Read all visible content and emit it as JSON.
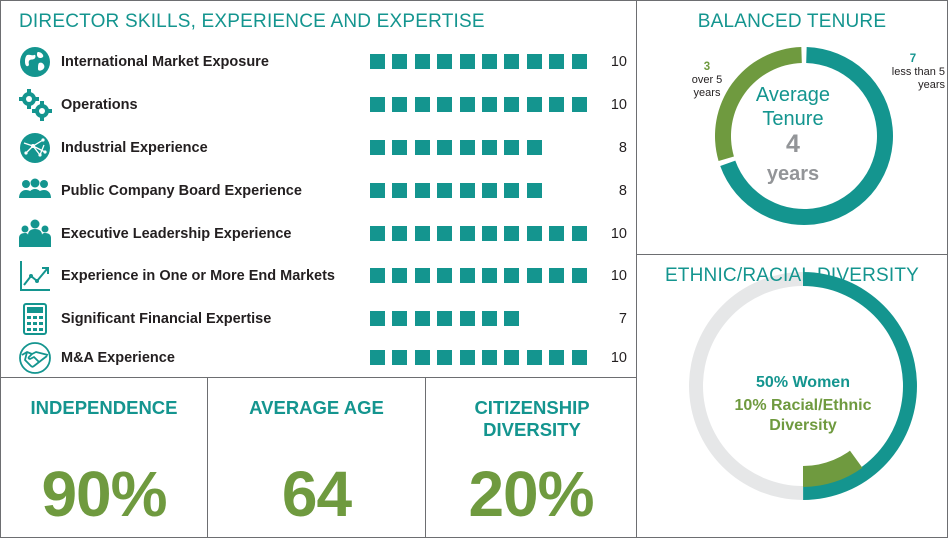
{
  "skills_panel": {
    "title": "DIRECTOR SKILLS, EXPERIENCE AND EXPERTISE",
    "skills": [
      {
        "label": "International Market Exposure",
        "value": 10,
        "icon": "globe-icon"
      },
      {
        "label": "Operations",
        "value": 10,
        "icon": "gears-icon"
      },
      {
        "label": "Industrial Experience",
        "value": 8,
        "icon": "network-globe-icon"
      },
      {
        "label": "Public Company Board Experience",
        "value": 8,
        "icon": "board-people-icon"
      },
      {
        "label": "Executive Leadership Experience",
        "value": 10,
        "icon": "leadership-group-icon"
      },
      {
        "label": "Experience in One or More End Markets",
        "value": 10,
        "icon": "trend-chart-icon"
      },
      {
        "label": "Significant Financial Expertise",
        "value": 7,
        "icon": "calculator-icon"
      },
      {
        "label": "M&A Experience",
        "value": 10,
        "icon": "handshake-icon"
      }
    ]
  },
  "stats": {
    "independence": {
      "label": "INDEPENDENCE",
      "value": "90%"
    },
    "average_age": {
      "label": "AVERAGE AGE",
      "value": "64"
    },
    "citizenship": {
      "label": "CITIZENSHIP DIVERSITY",
      "value": "20%"
    }
  },
  "tenure": {
    "title": "BALANCED TENURE",
    "center_label": "Average Tenure",
    "center_value": "4",
    "center_unit": "years",
    "over_count": "3",
    "over_label": "over 5 years",
    "under_count": "7",
    "under_label": "less than 5 years"
  },
  "diversity": {
    "title": "ETHNIC/RACIAL DIVERSITY",
    "women_label": "50% Women",
    "ethnic_label": "10% Racial/Ethnic Diversity"
  },
  "colors": {
    "teal": "#14958f",
    "green": "#6f9a3f",
    "gray": "#939598",
    "light_gray": "#e6e7e8"
  },
  "chart_data": [
    {
      "type": "bar",
      "title": "DIRECTOR SKILLS, EXPERIENCE AND EXPERTISE",
      "categories": [
        "International Market Exposure",
        "Operations",
        "Industrial Experience",
        "Public Company Board Experience",
        "Executive Leadership Experience",
        "Experience in One or More End Markets",
        "Significant Financial Expertise",
        "M&A Experience"
      ],
      "values": [
        10,
        10,
        8,
        8,
        10,
        10,
        7,
        10
      ],
      "xlabel": "",
      "ylabel": ""
    },
    {
      "type": "pie",
      "title": "BALANCED TENURE",
      "categories": [
        "over 5 years",
        "less than 5 years"
      ],
      "values": [
        3,
        7
      ]
    },
    {
      "type": "pie",
      "title": "ETHNIC/RACIAL DIVERSITY",
      "categories": [
        "Women",
        "Racial/Ethnic Diversity",
        "Other"
      ],
      "values": [
        50,
        10,
        50
      ]
    }
  ]
}
